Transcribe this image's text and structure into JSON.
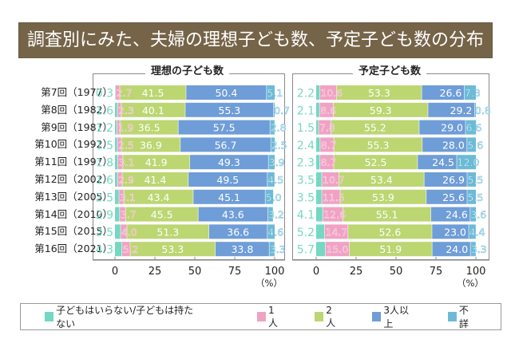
{
  "title": "調査別にみた、夫婦の理想子ども数、予定子ども数の分布",
  "colors": {
    "banner": "#766448",
    "none": "#74d8c2",
    "one": "#f0a2c4",
    "two": "#bcd672",
    "three_plus": "#6f9dd7",
    "unknown": "#6dbad7",
    "value_label_none": "#74d8c2"
  },
  "legend": [
    {
      "key": "none",
      "label": "子どもはいらない/子どもは持たない"
    },
    {
      "key": "one",
      "label": "1人"
    },
    {
      "key": "two",
      "label": "2人"
    },
    {
      "key": "three_plus",
      "label": "3人以上"
    },
    {
      "key": "unknown",
      "label": "不詳"
    }
  ],
  "chart_data": [
    {
      "type": "bar",
      "stacked": true,
      "orientation": "horizontal",
      "title": "理想の子ども数",
      "xlabel": "（%）",
      "xlim": [
        0,
        100
      ],
      "xticks": [
        "0",
        "25",
        "50",
        "75",
        "100"
      ],
      "categories": [
        "第7回（1977）",
        "第8回（1982）",
        "第9回（1987）",
        "第10回（1992）",
        "第11回（1997）",
        "第12回（2002）",
        "第13回（2005）",
        "第14回（2010）",
        "第15回（2015）",
        "第16回（2021）"
      ],
      "series": [
        {
          "name": "子どもはいらない/子どもは持たない",
          "key": "none",
          "values": [
            0.3,
            1.6,
            1.2,
            1.5,
            1.8,
            1.6,
            2.5,
            2.9,
            3.5,
            4.3
          ]
        },
        {
          "name": "1人",
          "key": "one",
          "values": [
            2.7,
            2.3,
            1.9,
            2.5,
            3.1,
            2.9,
            3.1,
            3.7,
            4.0,
            5.2
          ]
        },
        {
          "name": "2人",
          "key": "two",
          "values": [
            41.5,
            40.1,
            36.5,
            36.9,
            41.9,
            41.4,
            43.4,
            45.5,
            51.3,
            53.3
          ]
        },
        {
          "name": "3人以上",
          "key": "three_plus",
          "values": [
            50.4,
            55.3,
            57.5,
            56.7,
            49.3,
            49.5,
            45.1,
            43.6,
            36.6,
            33.8
          ]
        },
        {
          "name": "不詳",
          "key": "unknown",
          "values": [
            5.1,
            0.7,
            2.8,
            2.5,
            3.9,
            4.5,
            5.0,
            3.2,
            4.6,
            3.3
          ]
        }
      ]
    },
    {
      "type": "bar",
      "stacked": true,
      "orientation": "horizontal",
      "title": "予定子ども数",
      "xlabel": "（%）",
      "xlim": [
        0,
        100
      ],
      "xticks": [
        "0",
        "25",
        "50",
        "75",
        "100"
      ],
      "categories": [
        "第7回（1977）",
        "第8回（1982）",
        "第9回（1987）",
        "第10回（1992）",
        "第11回（1997）",
        "第12回（2002）",
        "第13回（2005）",
        "第14回（2010）",
        "第15回（2015）",
        "第16回（2021）"
      ],
      "series": [
        {
          "name": "子どもはいらない/子どもは持たない",
          "key": "none",
          "values": [
            2.2,
            2.1,
            1.5,
            2.4,
            2.3,
            3.5,
            3.5,
            4.1,
            5.2,
            5.7
          ]
        },
        {
          "name": "1人",
          "key": "one",
          "values": [
            10.6,
            8.6,
            7.8,
            8.7,
            8.7,
            10.7,
            11.5,
            12.6,
            14.7,
            15.0
          ]
        },
        {
          "name": "2人",
          "key": "two",
          "values": [
            53.3,
            59.3,
            55.2,
            55.3,
            52.5,
            53.4,
            53.9,
            55.1,
            52.6,
            51.9
          ]
        },
        {
          "name": "3人以上",
          "key": "three_plus",
          "values": [
            26.6,
            29.2,
            29.0,
            28.0,
            24.5,
            26.9,
            25.6,
            24.6,
            23.0,
            24.0
          ]
        },
        {
          "name": "不詳",
          "key": "unknown",
          "values": [
            7.3,
            0.8,
            6.6,
            5.6,
            12.0,
            5.5,
            5.5,
            3.6,
            4.4,
            3.3
          ]
        }
      ]
    }
  ]
}
